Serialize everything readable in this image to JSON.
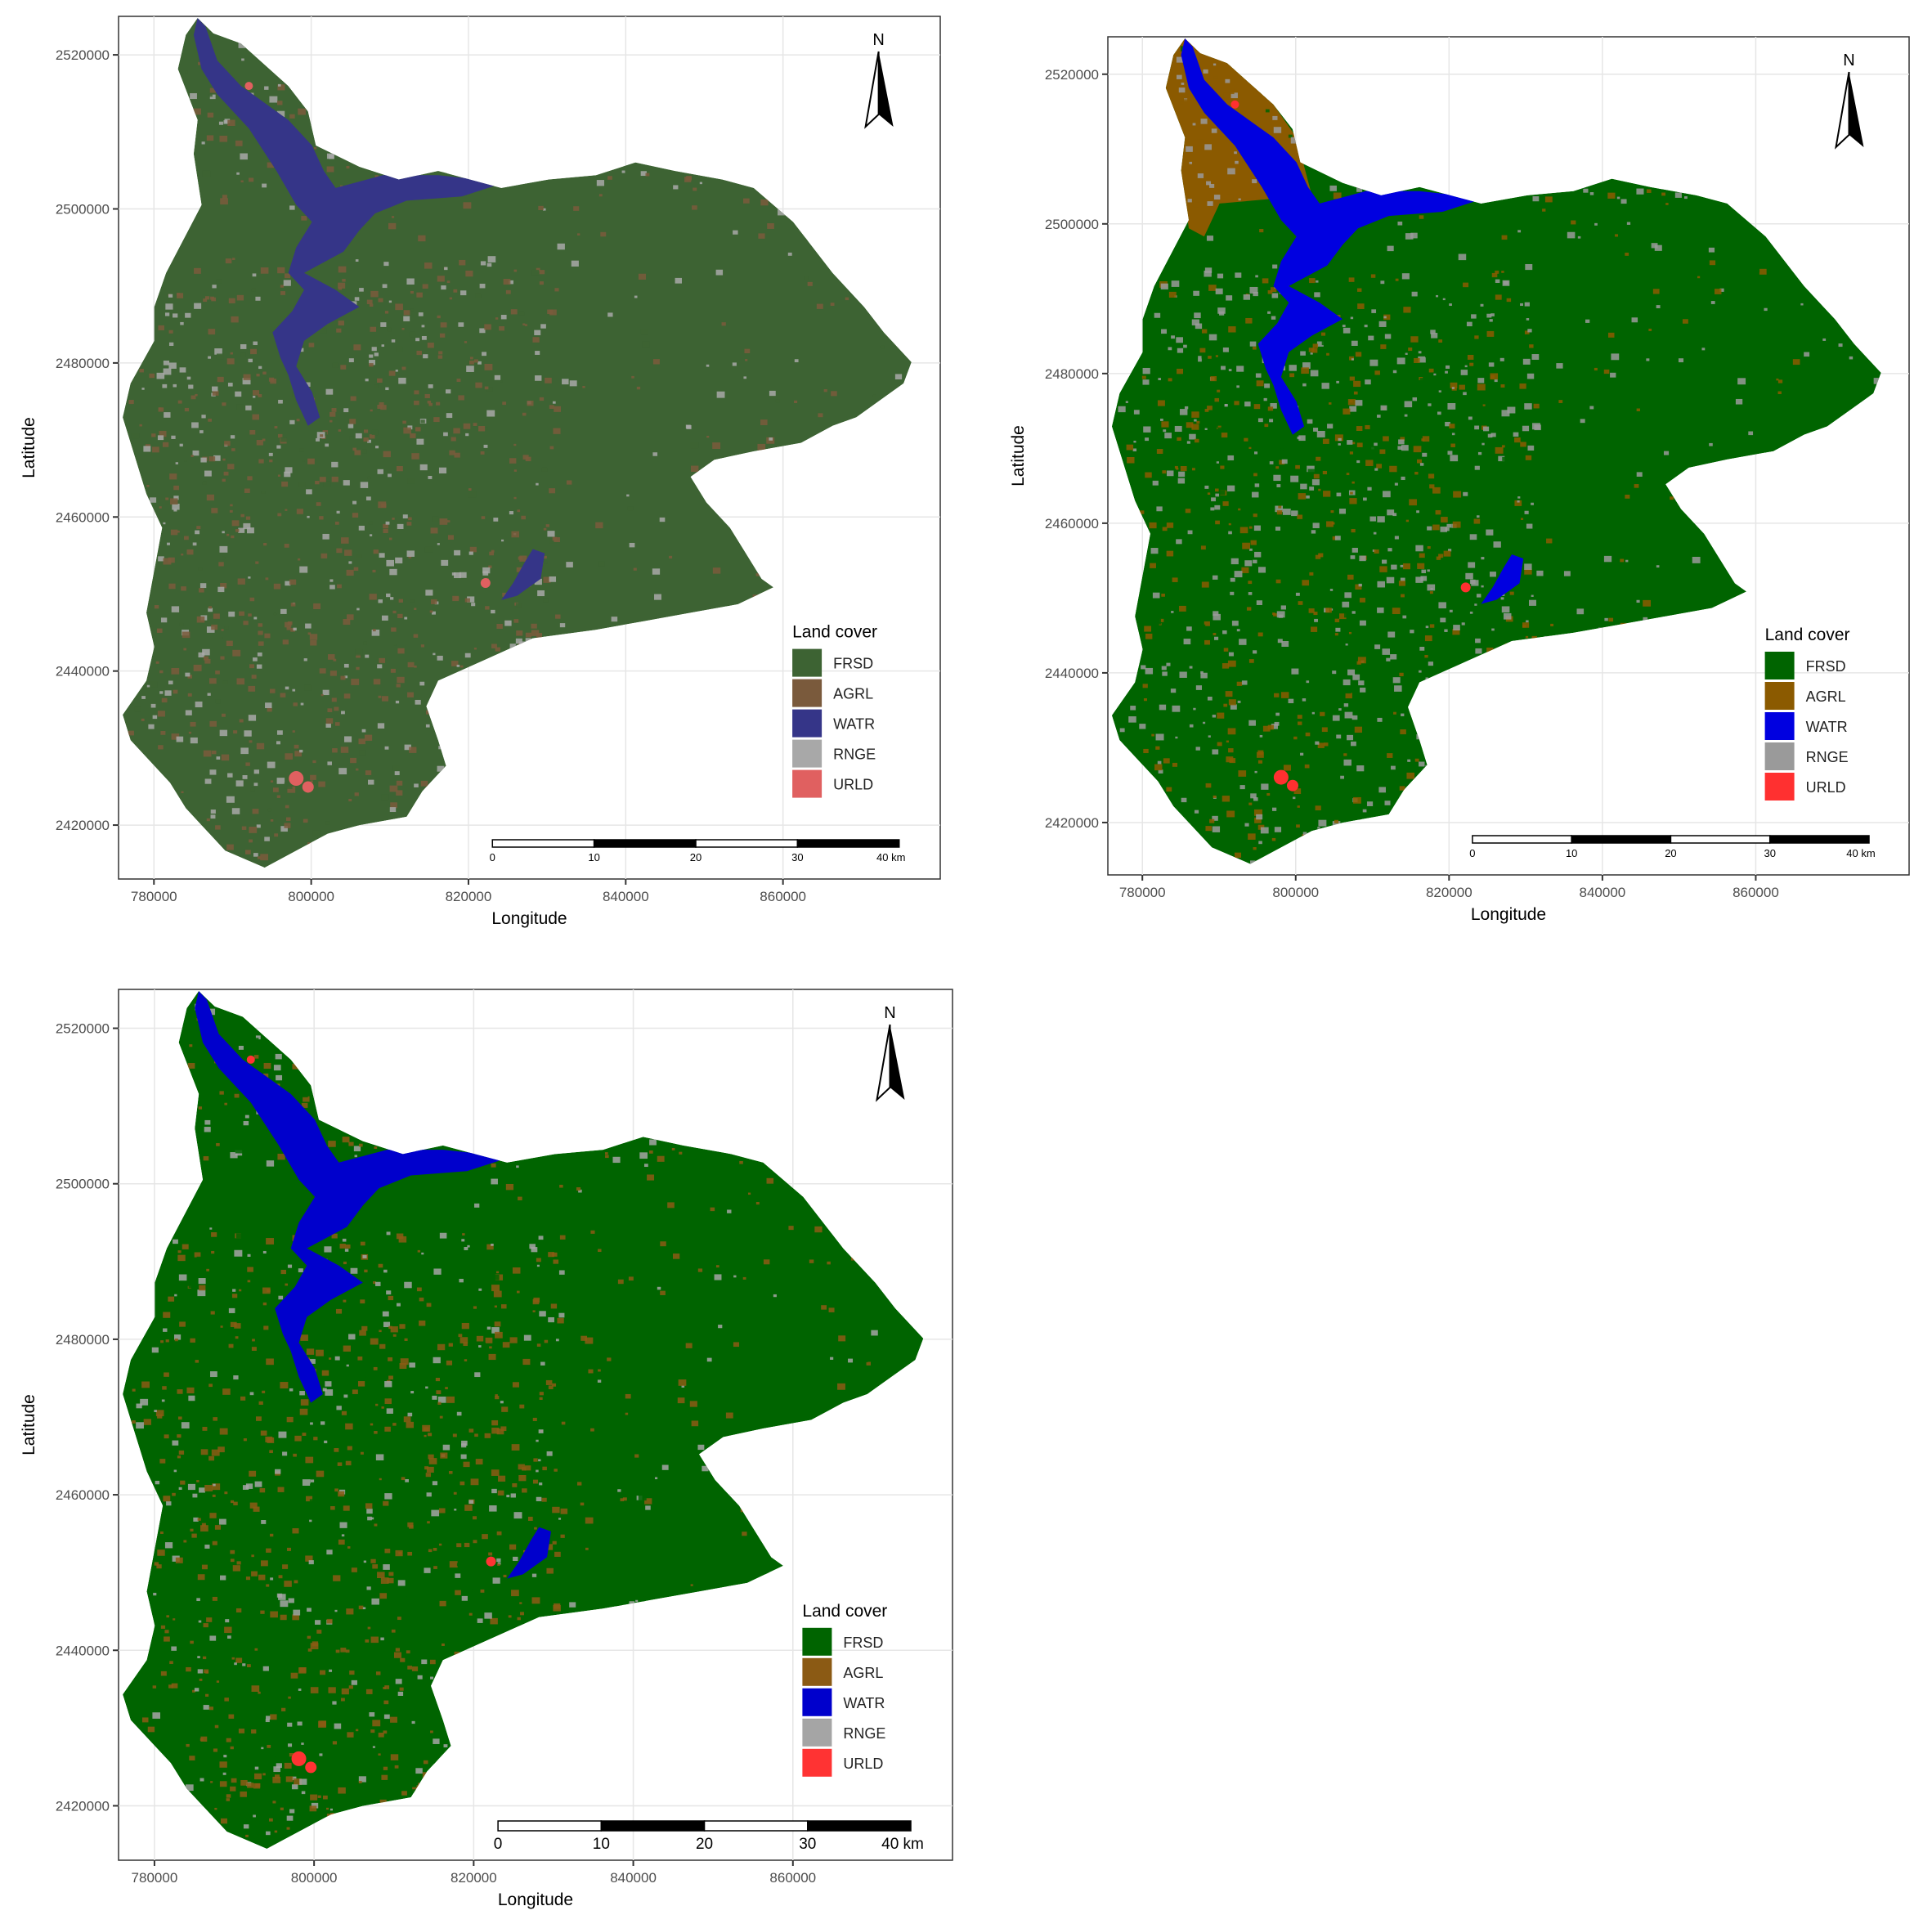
{
  "map_data": {
    "axis": {
      "xlabel": "Longitude",
      "ylabel": "Latitude",
      "xticks": [
        780000,
        800000,
        820000,
        840000,
        860000
      ],
      "yticks": [
        2420000,
        2440000,
        2460000,
        2480000,
        2500000,
        2520000
      ],
      "xlim": [
        775500,
        880000
      ],
      "ylim": [
        2413000,
        2525000
      ]
    },
    "legend": {
      "title": "Land cover",
      "entries": [
        "FRSD",
        "AGRL",
        "WATR",
        "RNGE",
        "URLD"
      ]
    },
    "scale_bar": {
      "labels": [
        "0",
        "10",
        "20",
        "30",
        "40 km"
      ]
    },
    "north_arrow": "N",
    "maps": [
      {
        "palette": [
          "#3d6333",
          "#7a5a3c",
          "#353588",
          "#a8a8a8",
          "#e06060"
        ],
        "agrl_north": false,
        "rnge_level": 0.35
      },
      {
        "palette": [
          "#006400",
          "#8b5a00",
          "#0000e0",
          "#9a9a9a",
          "#ff3030"
        ],
        "agrl_north": true,
        "rnge_level": 0.55
      },
      {
        "palette": [
          "#006400",
          "#8b5a14",
          "#0000cc",
          "#a5a5a5",
          "#ff3333"
        ],
        "agrl_north": false,
        "rnge_level": 0.3
      }
    ]
  }
}
